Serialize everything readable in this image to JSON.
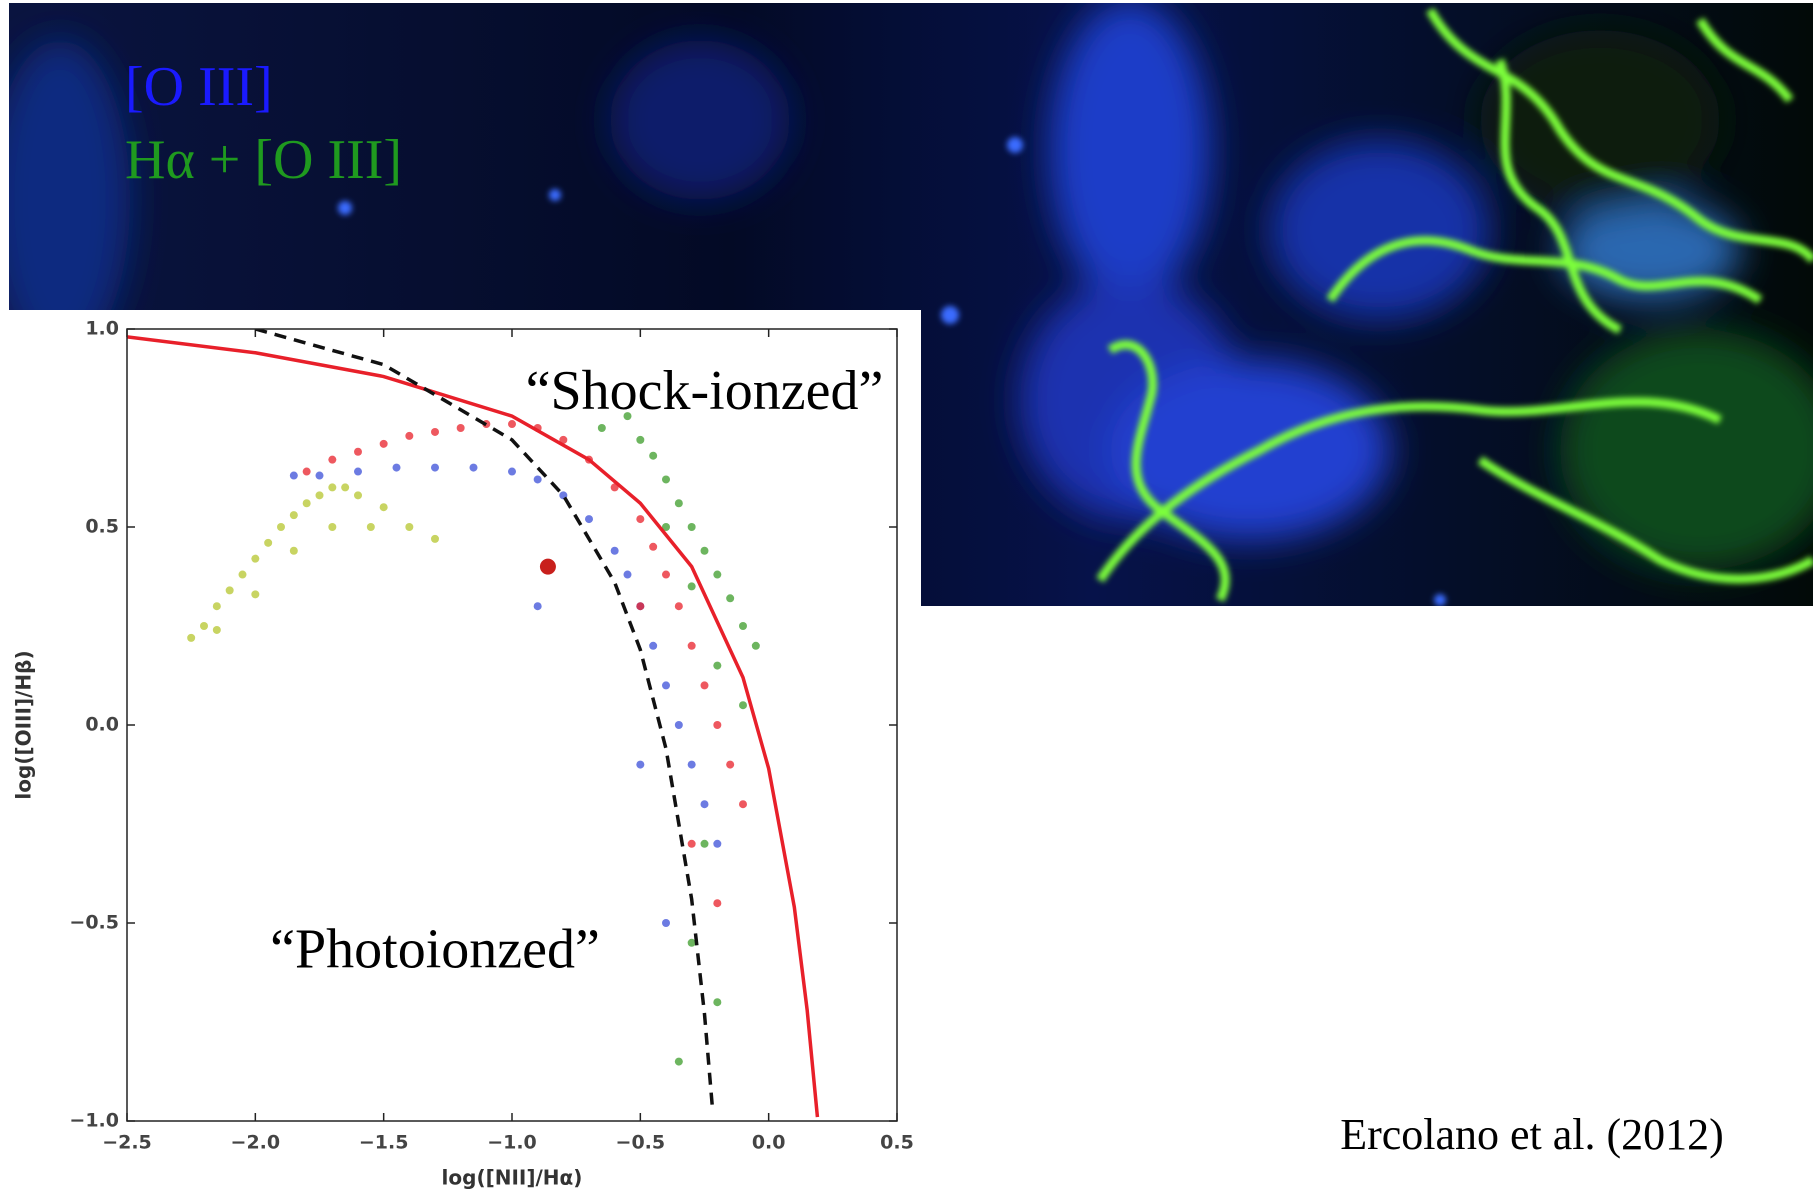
{
  "image_labels": [
    "[O III]",
    "Hα + [O III]"
  ],
  "citation": "Ercolano et al. (2012)",
  "chart_data": {
    "type": "scatter",
    "xlabel": "log([NII]/Hα)",
    "ylabel": "log([OIII]/Hβ)",
    "annotations": [
      {
        "text": "“Shock-ionzed”",
        "x": -0.25,
        "y": 0.83
      },
      {
        "text": "“Photoionzed”",
        "x": -1.3,
        "y": -0.58
      }
    ],
    "xlim": [
      -2.5,
      0.5
    ],
    "ylim": [
      -1.0,
      1.0
    ],
    "xticks": [
      {
        "value": -2.5,
        "label": "−2.5"
      },
      {
        "value": -2.0,
        "label": "−2.0"
      },
      {
        "value": -1.5,
        "label": "−1.5"
      },
      {
        "value": -1.0,
        "label": "−1.0"
      },
      {
        "value": -0.5,
        "label": "−0.5"
      },
      {
        "value": 0.0,
        "label": "0.0"
      },
      0.5
    ],
    "yticks": [
      {
        "value": -1.0,
        "label": "−1.0"
      },
      {
        "value": -0.5,
        "label": "−0.5"
      },
      {
        "value": 0.0,
        "label": "0.0"
      },
      0.5,
      {
        "value": 1.0,
        "label": "1.0"
      }
    ],
    "series": [
      {
        "mode": "points",
        "color": "#b5c62e",
        "marker_size": 4,
        "x": [
          -2.25,
          -2.2,
          -2.15,
          -2.1,
          -2.05,
          -2.0,
          -1.95,
          -1.9,
          -1.85,
          -1.8,
          -1.75,
          -1.7,
          -1.65,
          -1.6,
          -1.5,
          -1.4,
          -1.3,
          -2.15,
          -2.0,
          -1.85,
          -1.7,
          -1.55
        ],
        "values": [
          0.22,
          0.25,
          0.3,
          0.34,
          0.38,
          0.42,
          0.46,
          0.5,
          0.53,
          0.56,
          0.58,
          0.6,
          0.6,
          0.58,
          0.55,
          0.5,
          0.47,
          0.24,
          0.33,
          0.44,
          0.5,
          0.5
        ]
      },
      {
        "mode": "points",
        "color": "#3b4fd8",
        "marker_size": 4,
        "x": [
          -1.85,
          -1.75,
          -1.6,
          -1.45,
          -1.3,
          -1.15,
          -1.0,
          -0.9,
          -0.8,
          -0.7,
          -0.6,
          -0.55,
          -0.5,
          -0.45,
          -0.4,
          -0.35,
          -0.3,
          -0.25,
          -0.2,
          -0.4,
          -0.5,
          -0.9
        ],
        "values": [
          0.63,
          0.63,
          0.64,
          0.65,
          0.65,
          0.65,
          0.64,
          0.62,
          0.58,
          0.52,
          0.44,
          0.38,
          0.3,
          0.2,
          0.1,
          0.0,
          -0.1,
          -0.2,
          -0.3,
          -0.5,
          -0.1,
          0.3
        ]
      },
      {
        "mode": "points",
        "color": "#e8202a",
        "marker_size": 4,
        "x": [
          -1.8,
          -1.7,
          -1.6,
          -1.5,
          -1.4,
          -1.3,
          -1.2,
          -1.1,
          -1.0,
          -0.9,
          -0.8,
          -0.7,
          -0.6,
          -0.5,
          -0.45,
          -0.4,
          -0.35,
          -0.3,
          -0.25,
          -0.2,
          -0.15,
          -0.1,
          -0.3,
          -0.5,
          -0.2
        ],
        "values": [
          0.64,
          0.67,
          0.69,
          0.71,
          0.73,
          0.74,
          0.75,
          0.76,
          0.76,
          0.75,
          0.72,
          0.67,
          0.6,
          0.52,
          0.45,
          0.38,
          0.3,
          0.2,
          0.1,
          0.0,
          -0.1,
          -0.2,
          -0.3,
          0.3,
          -0.45
        ]
      },
      {
        "mode": "points",
        "color": "#3c9c2a",
        "marker_size": 4,
        "x": [
          -0.65,
          -0.55,
          -0.5,
          -0.45,
          -0.4,
          -0.35,
          -0.3,
          -0.25,
          -0.2,
          -0.15,
          -0.1,
          -0.05,
          -0.4,
          -0.3,
          -0.2,
          -0.1,
          -0.25,
          -0.3,
          -0.2,
          -0.35
        ],
        "values": [
          0.75,
          0.78,
          0.72,
          0.68,
          0.62,
          0.56,
          0.5,
          0.44,
          0.38,
          0.32,
          0.25,
          0.2,
          0.5,
          0.35,
          0.15,
          0.05,
          -0.3,
          -0.55,
          -0.7,
          -0.85
        ]
      },
      {
        "mode": "line",
        "color": "#e8202a",
        "dashed": false,
        "x": [
          -2.5,
          -2.0,
          -1.5,
          -1.0,
          -0.7,
          -0.5,
          -0.3,
          -0.1,
          0.0,
          0.1,
          0.15,
          0.19
        ],
        "values": [
          0.98,
          0.94,
          0.88,
          0.78,
          0.67,
          0.56,
          0.4,
          0.12,
          -0.11,
          -0.46,
          -0.72,
          -0.99
        ]
      },
      {
        "mode": "line",
        "color": "#111111",
        "dashed": true,
        "x": [
          -2.0,
          -1.5,
          -1.0,
          -0.8,
          -0.6,
          -0.5,
          -0.4,
          -0.3,
          -0.25,
          -0.22
        ],
        "values": [
          1.0,
          0.91,
          0.72,
          0.58,
          0.36,
          0.19,
          -0.06,
          -0.44,
          -0.73,
          -0.96
        ]
      },
      {
        "mode": "points",
        "color": "#c8201c",
        "marker_size": 8,
        "x": [
          -0.86
        ],
        "values": [
          0.4
        ]
      }
    ]
  }
}
